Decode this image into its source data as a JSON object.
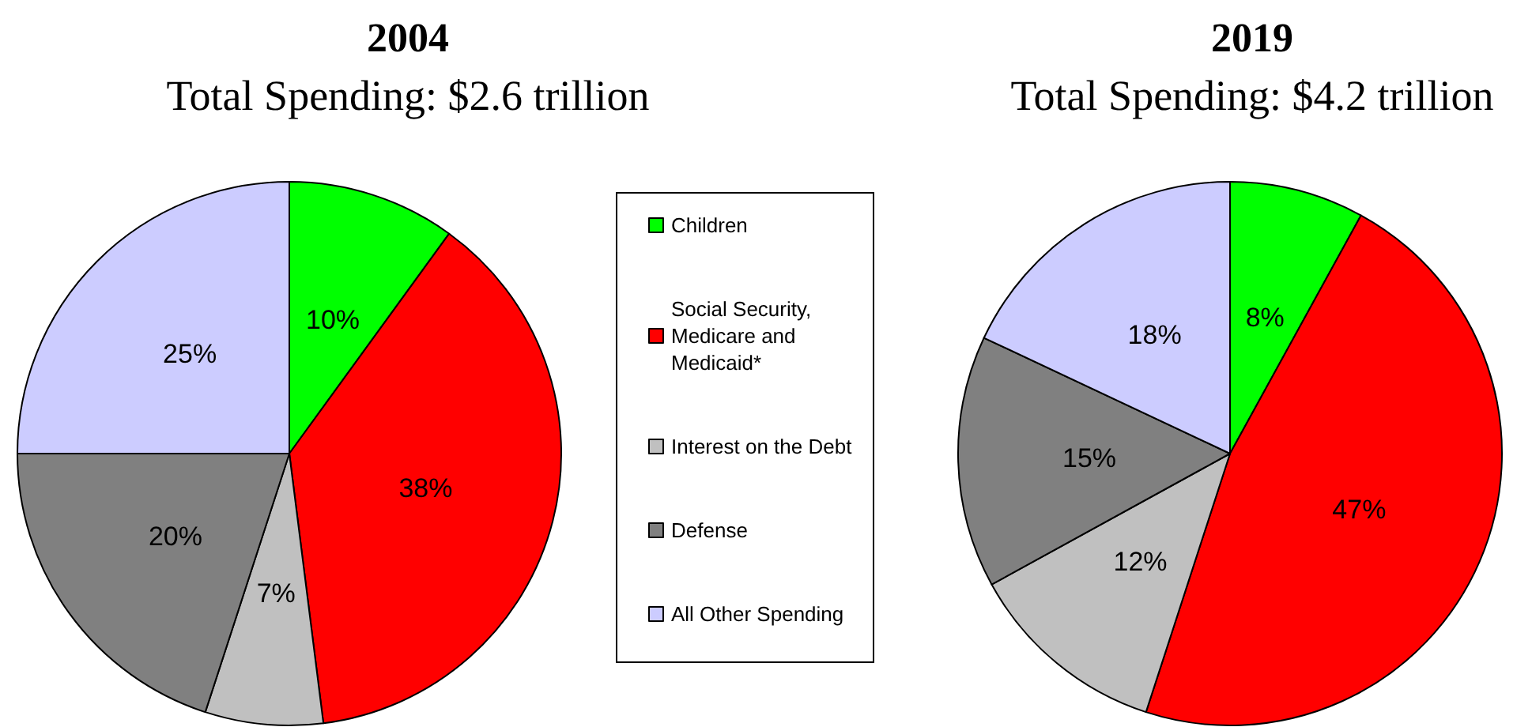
{
  "chart_data": [
    {
      "type": "pie",
      "title": "2004",
      "subtitle": "Total Spending: $2.6 trillion",
      "categories": [
        "Children",
        "Social Security, Medicare and Medicaid*",
        "Interest on the Debt",
        "Defense",
        "All Other Spending"
      ],
      "values": [
        10,
        38,
        7,
        20,
        25
      ],
      "colors": [
        "#00ff00",
        "#ff0000",
        "#c0c0c0",
        "#808080",
        "#ccccff"
      ],
      "value_labels": [
        "10%",
        "38%",
        "7%",
        "20%",
        "25%"
      ],
      "legend": "right"
    },
    {
      "type": "pie",
      "title": "2019",
      "subtitle": "Total Spending: $4.2 trillion",
      "categories": [
        null,
        null,
        null,
        null,
        null
      ],
      "values": [
        8,
        47,
        12,
        15,
        18
      ],
      "colors": [
        "#00ff00",
        "#ff0000",
        "#c0c0c0",
        "#808080",
        "#ccccff"
      ],
      "value_labels": [
        "8%",
        "47%",
        "12%",
        "15%",
        "18%"
      ]
    }
  ]
}
